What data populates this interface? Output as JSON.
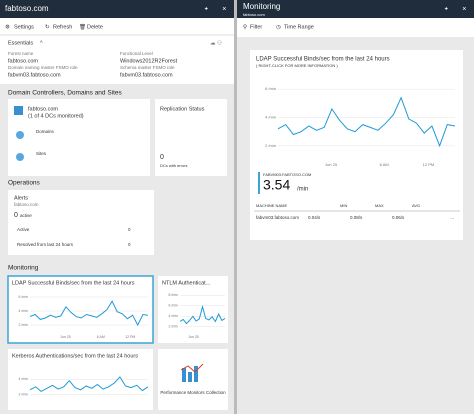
{
  "left_blade": {
    "title": "fabtoso.com",
    "toolbar": [
      "Settings",
      "Refresh",
      "Delete"
    ],
    "essentials": {
      "heading": "Essentials",
      "fields": [
        {
          "label": "Forest name",
          "value": "fabtoso.com"
        },
        {
          "label": "Domain naming master FSMO role",
          "value": "fabvm03.fabtoso.com"
        },
        {
          "label": "Functional Level",
          "value": "Windows2012R2Forest"
        },
        {
          "label": "Schema master FSMO role",
          "value": "fabvm03.fabtoso.com"
        }
      ]
    },
    "dc_section": {
      "heading": "Domain Controllers, Domains and Sites",
      "domain": "fabtoso.com",
      "monitored": "(1 of 4 DCs monitored)",
      "domains": "Domains",
      "sites": "Sites",
      "replication": {
        "title": "Replication Status",
        "count": 0,
        "caption": "DCs with errors"
      }
    },
    "operations": {
      "heading": "Operations",
      "alerts": {
        "title": "Alerts",
        "domain": "fabtoso.com",
        "active_count": 0,
        "active_label": "active",
        "rows": [
          {
            "label": "Active",
            "value": 0
          },
          {
            "label": "Resolved from last 24 hours",
            "value": 0
          }
        ]
      }
    },
    "monitoring": {
      "heading": "Monitoring",
      "ldap": {
        "title": "LDAP Successful Binds/sec from the last 24 hours",
        "ylim": [
          1,
          7
        ],
        "yticks": [
          {
            "value": 6,
            "label": "6 /min"
          },
          {
            "value": 4,
            "label": "4 /min"
          },
          {
            "value": 2,
            "label": "2 /min"
          }
        ],
        "x_labels": [
          "Jun 25",
          "6 AM",
          "12 PM"
        ],
        "values": [
          3.2,
          3.5,
          2.8,
          3.0,
          3.4,
          3.1,
          3.3,
          4.6,
          3.8,
          3.2,
          3.0,
          3.5,
          3.3,
          3.1,
          3.6,
          4.2,
          5.4,
          3.9,
          3.6,
          2.9,
          3.4,
          2.0,
          3.5,
          3.4
        ]
      },
      "ntlm": {
        "title": "NTLM Authenticat...",
        "ylim": [
          1,
          9
        ],
        "yticks": [
          {
            "value": 8,
            "label": "8 /min"
          },
          {
            "value": 6,
            "label": "6 /min"
          },
          {
            "value": 4,
            "label": "4 /min"
          },
          {
            "value": 2,
            "label": "2 /min"
          }
        ],
        "x_labels": [
          "Jun 25"
        ],
        "values": [
          3.0,
          3.4,
          2.6,
          3.2,
          4.0,
          3.1,
          3.5,
          5.8,
          3.6,
          3.3,
          3.9,
          3.0,
          4.4,
          3.2,
          3.6
        ]
      },
      "kerberos": {
        "title": "Kerberos Authentications/sec from the last 24 hours",
        "ylim": [
          1,
          6
        ],
        "yticks": [
          {
            "value": 4,
            "label": "4 /min"
          },
          {
            "value": 2,
            "label": "2 /min"
          }
        ],
        "x_labels": [],
        "values": [
          2.6,
          3.0,
          2.4,
          2.8,
          3.2,
          2.7,
          3.0,
          3.8,
          2.9,
          2.6,
          3.1,
          2.8,
          3.3,
          2.7,
          3.0,
          3.5,
          4.3,
          3.1,
          2.9,
          3.2,
          2.5,
          3.0
        ]
      },
      "perf": {
        "title": "Performance Monitors Collection"
      }
    }
  },
  "right_blade": {
    "title": "Monitoring",
    "subtitle": "fabtoso.com",
    "toolbar": [
      "Filter",
      "Time Range"
    ],
    "chart": {
      "title": "LDAP Successful Binds/sec from the last 24 hours",
      "subtitle": "( RIGHT-CLICK FOR MORE INFORMATION )",
      "ylim": [
        1,
        7
      ],
      "yticks": [
        {
          "value": 6,
          "label": "6 /min"
        },
        {
          "value": 4,
          "label": "4 /min"
        },
        {
          "value": 2,
          "label": "2 /min"
        }
      ],
      "x_labels": [
        "Jun 25",
        "6 AM",
        "12 PM"
      ],
      "values": [
        3.2,
        3.5,
        2.8,
        3.0,
        3.4,
        3.1,
        3.3,
        4.6,
        3.8,
        3.2,
        3.0,
        3.5,
        3.3,
        3.1,
        3.6,
        4.2,
        5.4,
        3.9,
        3.6,
        2.9,
        3.4,
        2.0,
        3.5,
        3.4
      ]
    },
    "legend": {
      "machine": "FABVM03.FABTOSO.COM",
      "value": 3.54,
      "unit": "/min"
    },
    "table": {
      "headers": [
        "MACHINE NAME",
        "MIN",
        "MAX",
        "AVG"
      ],
      "rows": [
        [
          "fabvm03.fabtoso.com",
          "0.04/s",
          "0.08/s",
          "0.06/s"
        ]
      ]
    }
  }
}
